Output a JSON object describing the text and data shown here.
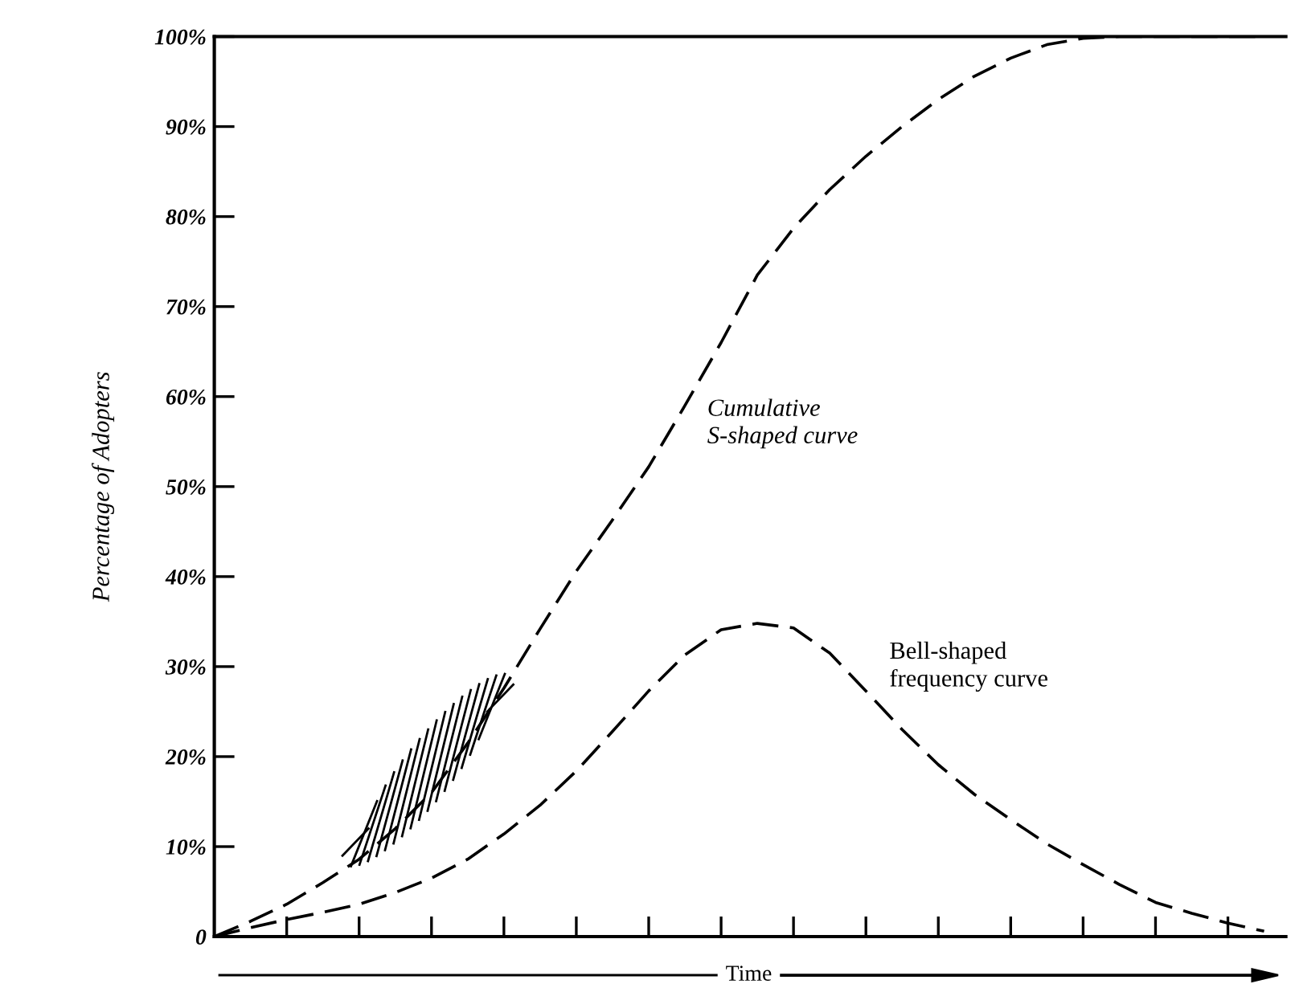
{
  "chart_data": {
    "type": "line",
    "ylabel": "Percentage of Adopters",
    "xlabel": "Time",
    "categories": [
      null,
      null,
      null,
      null,
      null,
      null,
      null,
      null,
      null,
      null,
      null,
      null,
      null,
      null,
      null,
      null,
      null,
      null,
      null,
      null,
      null,
      null,
      null,
      null,
      null,
      null,
      null,
      null,
      null,
      null
    ],
    "ylim": [
      0,
      100
    ],
    "yticks": [
      0,
      {
        "value": 10,
        "label": "10%"
      },
      {
        "value": 20,
        "label": "20%"
      },
      {
        "value": 30,
        "label": "30%"
      },
      {
        "value": 40,
        "label": "40%"
      },
      {
        "value": 50,
        "label": "50%"
      },
      {
        "value": 60,
        "label": "60%"
      },
      {
        "value": 70,
        "label": "70%"
      },
      {
        "value": 80,
        "label": "80%"
      },
      {
        "value": 90,
        "label": "90%"
      },
      {
        "value": 100,
        "label": "100%"
      }
    ],
    "grid": false,
    "legend": false,
    "line_style": "dashed",
    "marker": "none",
    "series": [
      {
        "name": "Cumulative\nS-shaped curve",
        "color": "#000000",
        "values": [
          0,
          1.7,
          3.6,
          6,
          8.6,
          12,
          16,
          21.5,
          27.6,
          34.2,
          40.6,
          46.3,
          52.2,
          59,
          66,
          73.5,
          78.7,
          83,
          86.7,
          90,
          93,
          95.6,
          97.6,
          99.1,
          99.8,
          100,
          100,
          100,
          100,
          100
        ]
      },
      {
        "name": "Bell-shaped\nfrequency curve",
        "color": "#000000",
        "values": [
          0,
          1,
          1.9,
          2.7,
          3.6,
          4.9,
          6.5,
          8.6,
          11.4,
          14.6,
          18.4,
          22.8,
          27.3,
          31.3,
          34.1,
          34.8,
          34.3,
          31.5,
          27.3,
          23,
          19.1,
          15.8,
          13,
          10.3,
          8,
          5.8,
          3.8,
          2.6,
          1.5,
          0.6
        ]
      }
    ]
  }
}
